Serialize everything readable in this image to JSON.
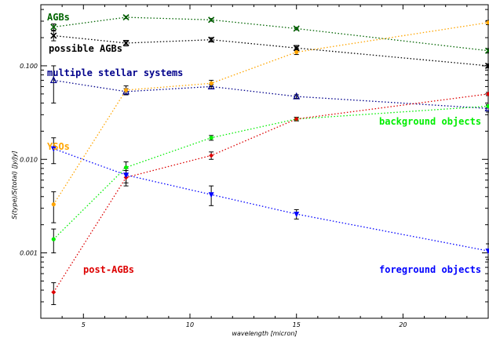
{
  "chart_data": {
    "type": "line",
    "xlabel": "wavelength [micron]",
    "ylabel": "S(type)/S(total) [Jy/Jy]",
    "xscale": "linear",
    "yscale": "log",
    "xlim": [
      3.0,
      24.0
    ],
    "ylim": [
      0.0002,
      0.45
    ],
    "x_ticks": [
      5,
      10,
      15,
      20
    ],
    "y_ticks": [
      0.001,
      0.01,
      0.1
    ],
    "y_tick_labels": [
      "0.001",
      "0.010",
      "0.100"
    ],
    "grid": false,
    "x": [
      3.6,
      7.0,
      11.0,
      15.0,
      24.0
    ],
    "series": [
      {
        "name": "AGBs",
        "color": "#006400",
        "marker": "x",
        "values": [
          0.26,
          0.33,
          0.31,
          0.25,
          0.145
        ],
        "err": [
          0.02,
          0.01,
          0.01,
          0.008,
          0.008
        ]
      },
      {
        "name": "possible AGBs",
        "color": "#000000",
        "marker": "x",
        "values": [
          0.21,
          0.175,
          0.19,
          0.155,
          0.1
        ],
        "err": [
          0.025,
          0.012,
          0.01,
          0.01,
          0.005
        ]
      },
      {
        "name": "multiple stellar systems",
        "color": "#00008b",
        "marker": "triangle-up",
        "values": [
          0.07,
          0.053,
          0.06,
          0.047,
          0.035
        ],
        "err": [
          0.03,
          0.004,
          0.003,
          0.002,
          0.003
        ]
      },
      {
        "name": "YSOs",
        "color": "#ffa500",
        "marker": "circle",
        "values": [
          0.0033,
          0.055,
          0.065,
          0.14,
          0.29
        ],
        "err": [
          0.0012,
          0.006,
          0.005,
          0.008,
          0.015
        ]
      },
      {
        "name": "background objects",
        "color": "#00ee00",
        "marker": "circle",
        "values": [
          0.0014,
          0.0082,
          0.017,
          0.027,
          0.037
        ],
        "err": [
          0.0004,
          0.0012,
          0.001,
          0.0012,
          0.0015
        ]
      },
      {
        "name": "post-AGBs",
        "color": "#dd0000",
        "marker": "diamond",
        "values": [
          0.00038,
          0.0064,
          0.011,
          0.027,
          0.05
        ],
        "err": [
          0.0001,
          0.0012,
          0.001,
          0.0012,
          0.002
        ]
      },
      {
        "name": "foreground objects",
        "color": "#0000ff",
        "marker": "triangle-down",
        "values": [
          0.013,
          0.0068,
          0.0042,
          0.0026,
          0.00105
        ],
        "err": [
          0.004,
          0.0012,
          0.001,
          0.0003,
          0.0002
        ]
      }
    ],
    "annotations": [
      {
        "text": "AGBs",
        "color": "#006400"
      },
      {
        "text": "possible AGBs",
        "color": "#000000"
      },
      {
        "text": "multiple stellar systems",
        "color": "#00008b"
      },
      {
        "text": "YSOs",
        "color": "#ffa500"
      },
      {
        "text": "background objects",
        "color": "#00ee00"
      },
      {
        "text": "post-AGBs",
        "color": "#dd0000"
      },
      {
        "text": "foreground objects",
        "color": "#0000ff"
      }
    ]
  }
}
